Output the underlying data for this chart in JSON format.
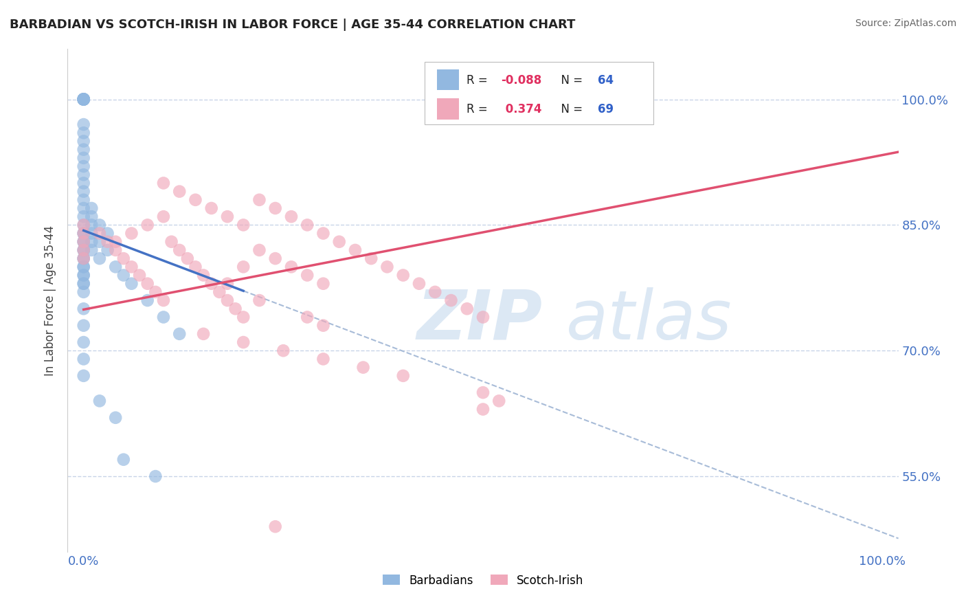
{
  "title": "BARBADIAN VS SCOTCH-IRISH IN LABOR FORCE | AGE 35-44 CORRELATION CHART",
  "source": "Source: ZipAtlas.com",
  "ylabel": "In Labor Force | Age 35-44",
  "xlim": [
    -0.02,
    1.02
  ],
  "ylim": [
    0.46,
    1.06
  ],
  "ytick_positions": [
    0.55,
    0.7,
    0.85,
    1.0
  ],
  "ytick_labels": [
    "55.0%",
    "70.0%",
    "85.0%",
    "100.0%"
  ],
  "xtick_positions": [
    0.0,
    0.25,
    0.5,
    0.75,
    1.0
  ],
  "xticklabels": [
    "0.0%",
    "",
    "",
    "",
    "100.0%"
  ],
  "blue_R": -0.088,
  "blue_N": 64,
  "pink_R": 0.374,
  "pink_N": 69,
  "blue_color": "#92b8e0",
  "pink_color": "#f0a8ba",
  "blue_line_color": "#4472c4",
  "pink_line_color": "#e05070",
  "dash_line_color": "#a8bcd8",
  "background_color": "#ffffff",
  "grid_color": "#c8d4e8",
  "legend_R_color": "#e03060",
  "legend_N_color": "#3060c8",
  "tick_color": "#4472c4",
  "watermark_zip": "ZIP",
  "watermark_atlas": "atlas",
  "watermark_color": "#dce8f4",
  "blue_scatter_x": [
    0.0,
    0.0,
    0.0,
    0.0,
    0.0,
    0.0,
    0.0,
    0.0,
    0.0,
    0.0,
    0.0,
    0.0,
    0.0,
    0.0,
    0.0,
    0.0,
    0.0,
    0.0,
    0.0,
    0.0,
    0.0,
    0.0,
    0.0,
    0.0,
    0.0,
    0.0,
    0.0,
    0.0,
    0.0,
    0.0,
    0.01,
    0.01,
    0.01,
    0.01,
    0.01,
    0.01,
    0.02,
    0.02,
    0.02,
    0.03,
    0.03,
    0.04,
    0.05,
    0.06,
    0.08,
    0.1,
    0.12,
    0.0,
    0.0,
    0.0,
    0.0,
    0.0,
    0.02,
    0.04,
    0.05,
    0.09,
    0.0,
    0.0,
    0.0,
    0.0,
    0.0,
    0.0,
    0.0,
    0.0
  ],
  "blue_scatter_y": [
    1.0,
    1.0,
    1.0,
    1.0,
    1.0,
    1.0,
    1.0,
    1.0,
    1.0,
    1.0,
    0.97,
    0.96,
    0.95,
    0.94,
    0.93,
    0.92,
    0.91,
    0.9,
    0.89,
    0.88,
    0.87,
    0.86,
    0.85,
    0.84,
    0.83,
    0.82,
    0.81,
    0.8,
    0.79,
    0.78,
    0.87,
    0.86,
    0.85,
    0.84,
    0.83,
    0.82,
    0.85,
    0.83,
    0.81,
    0.84,
    0.82,
    0.8,
    0.79,
    0.78,
    0.76,
    0.74,
    0.72,
    0.75,
    0.73,
    0.71,
    0.69,
    0.67,
    0.64,
    0.62,
    0.57,
    0.55,
    0.84,
    0.83,
    0.82,
    0.81,
    0.8,
    0.79,
    0.78,
    0.77
  ],
  "pink_scatter_x": [
    0.0,
    0.0,
    0.0,
    0.0,
    0.0,
    0.02,
    0.03,
    0.04,
    0.05,
    0.06,
    0.07,
    0.08,
    0.09,
    0.1,
    0.11,
    0.12,
    0.13,
    0.14,
    0.15,
    0.16,
    0.17,
    0.18,
    0.19,
    0.2,
    0.22,
    0.24,
    0.26,
    0.28,
    0.3,
    0.1,
    0.12,
    0.14,
    0.16,
    0.18,
    0.2,
    0.22,
    0.24,
    0.26,
    0.28,
    0.3,
    0.32,
    0.34,
    0.36,
    0.38,
    0.4,
    0.42,
    0.44,
    0.46,
    0.48,
    0.5,
    0.15,
    0.2,
    0.25,
    0.3,
    0.35,
    0.4,
    0.5,
    0.52,
    0.3,
    0.2,
    0.18,
    0.22,
    0.28,
    0.1,
    0.08,
    0.06,
    0.04,
    0.5,
    0.24
  ],
  "pink_scatter_y": [
    0.85,
    0.84,
    0.83,
    0.82,
    0.81,
    0.84,
    0.83,
    0.82,
    0.81,
    0.8,
    0.79,
    0.78,
    0.77,
    0.76,
    0.83,
    0.82,
    0.81,
    0.8,
    0.79,
    0.78,
    0.77,
    0.76,
    0.75,
    0.74,
    0.82,
    0.81,
    0.8,
    0.79,
    0.78,
    0.9,
    0.89,
    0.88,
    0.87,
    0.86,
    0.85,
    0.88,
    0.87,
    0.86,
    0.85,
    0.84,
    0.83,
    0.82,
    0.81,
    0.8,
    0.79,
    0.78,
    0.77,
    0.76,
    0.75,
    0.74,
    0.72,
    0.71,
    0.7,
    0.69,
    0.68,
    0.67,
    0.65,
    0.64,
    0.73,
    0.8,
    0.78,
    0.76,
    0.74,
    0.86,
    0.85,
    0.84,
    0.83,
    0.63,
    0.49
  ]
}
